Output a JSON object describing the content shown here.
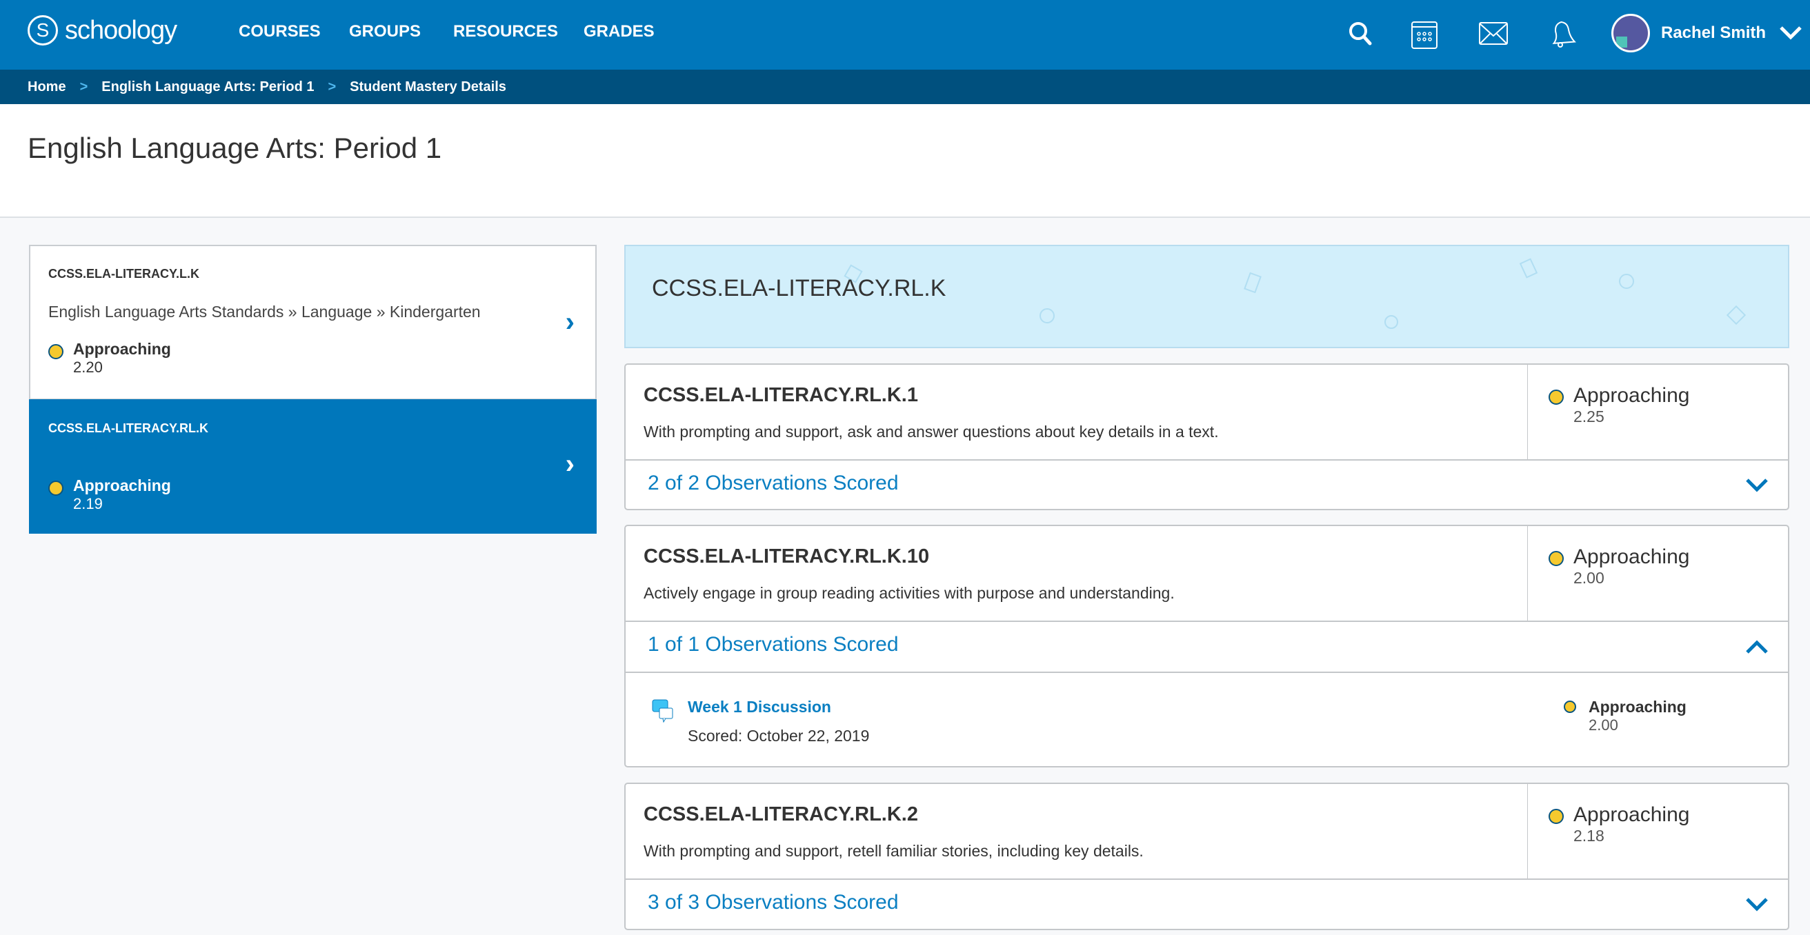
{
  "header": {
    "logo": "schoology",
    "nav": [
      "COURSES",
      "GROUPS",
      "RESOURCES",
      "GRADES"
    ],
    "user": "Rachel Smith",
    "icons": [
      "search-icon",
      "calendar-icon",
      "mail-icon",
      "bell-icon"
    ]
  },
  "breadcrumb": [
    "Home",
    "English Language Arts: Period 1",
    "Student Mastery Details"
  ],
  "page_title": "English Language Arts: Period 1",
  "sidebar": [
    {
      "code": "CCSS.ELA-LITERACY.L.K",
      "path": "English Language Arts Standards » Language » Kindergarten",
      "status": "Approaching",
      "score": "2.20",
      "selected": false
    },
    {
      "code": "CCSS.ELA-LITERACY.RL.K",
      "path": "",
      "status": "Approaching",
      "score": "2.19",
      "selected": true
    }
  ],
  "banner": "CCSS.ELA-LITERACY.RL.K",
  "standards": [
    {
      "code": "CCSS.ELA-LITERACY.RL.K.1",
      "desc": "With prompting and support, ask and answer questions about key details in a text.",
      "status": "Approaching",
      "score": "2.25",
      "observations": "2 of 2 Observations Scored",
      "expanded": false
    },
    {
      "code": "CCSS.ELA-LITERACY.RL.K.10",
      "desc": "Actively engage in group reading activities with purpose and understanding.",
      "status": "Approaching",
      "score": "2.00",
      "observations": "1 of 1 Observations Scored",
      "expanded": true,
      "items": [
        {
          "title": "Week 1 Discussion",
          "scored": "Scored: October 22, 2019",
          "status": "Approaching",
          "score": "2.00"
        }
      ]
    },
    {
      "code": "CCSS.ELA-LITERACY.RL.K.2",
      "desc": "With prompting and support, retell familiar stories, including key details.",
      "status": "Approaching",
      "score": "2.18",
      "observations": "3 of 3 Observations Scored",
      "expanded": false
    }
  ],
  "colors": {
    "brand": "#0077bb",
    "breadcrumb_bg": "#00507e",
    "approaching": "#f6c92e",
    "banner": "#d2effb"
  }
}
